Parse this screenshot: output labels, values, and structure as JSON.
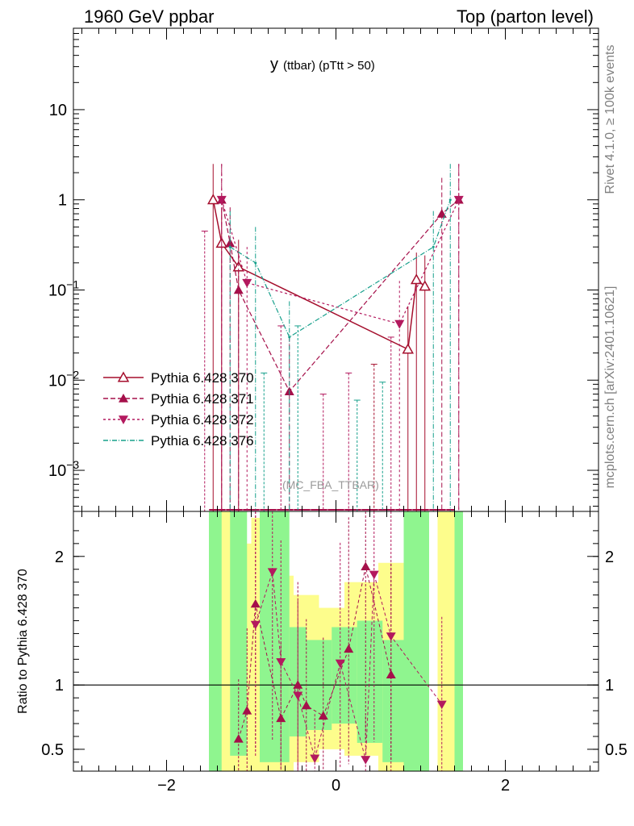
{
  "header": {
    "left": "1960 GeV ppbar",
    "right": "Top (parton level)"
  },
  "side_labels": {
    "rivet": "Rivet 4.1.0, ≥ 100k events",
    "mcplots": "mcplots.cern.ch [arXiv:2401.10621]"
  },
  "chart_data": {
    "type": "line",
    "title_main": "y",
    "title_sub": "(ttbar)  (pTtt > 50)",
    "watermark": "(MC_FBA_TTBAR)",
    "xlim": [
      -3.1,
      3.1
    ],
    "ylim_log": [
      0.00035,
      80
    ],
    "ratio_ylim": [
      0.33,
      2.35
    ],
    "ratio_ylabel": "Ratio to Pythia 6.428 370",
    "colors": {
      "s370": "#a50f2d",
      "s371": "#a5104a",
      "s372": "#b3195e",
      "s376": "#17a08c",
      "band_yellow": "#fdfd8c",
      "band_green": "#8ff58f"
    },
    "y_ticks": [
      {
        "v": 10,
        "base": "10",
        "exp": ""
      },
      {
        "v": 1,
        "base": "1",
        "exp": ""
      },
      {
        "v": 0.1,
        "base": "10",
        "exp": "−1"
      },
      {
        "v": 0.01,
        "base": "10",
        "exp": "−2"
      },
      {
        "v": 0.001,
        "base": "10",
        "exp": "−3"
      }
    ],
    "x_ticks": [
      {
        "v": -2,
        "label": "−2"
      },
      {
        "v": 0,
        "label": "0"
      },
      {
        "v": 2,
        "label": "2"
      }
    ],
    "ratio_ticks": [
      {
        "v": 2,
        "label": "2"
      },
      {
        "v": 1,
        "label": "1"
      },
      {
        "v": 0.5,
        "label": "0.5"
      }
    ],
    "series": [
      {
        "name": "Pythia 6.428 370",
        "key": "s370",
        "marker": "triangle-up-open",
        "dash": "",
        "x": [
          -1.45,
          -1.35,
          -1.15,
          0.85,
          0.95,
          1.05
        ],
        "y": [
          1.0,
          0.33,
          0.18,
          0.022,
          0.13,
          0.11
        ],
        "err": [
          2.5,
          2.5,
          2.0,
          3.0,
          2.0,
          2.2
        ]
      },
      {
        "name": "Pythia 6.428 371",
        "key": "s371",
        "marker": "triangle-up",
        "dash": "6,3",
        "x": [
          -1.35,
          -1.25,
          -1.15,
          -0.55,
          1.25,
          1.45
        ],
        "y": [
          1.0,
          0.33,
          0.1,
          0.0075,
          0.7,
          1.0
        ],
        "err": [
          2.5,
          2.5,
          2.5,
          4.0,
          2.5,
          2.5
        ]
      },
      {
        "name": "Pythia 6.428 372",
        "key": "s372",
        "marker": "triangle-down",
        "dash": "3,3",
        "x": [
          -1.35,
          -1.05,
          0.75,
          1.45
        ],
        "y": [
          1.0,
          0.12,
          0.042,
          1.0
        ],
        "err": [
          2.5,
          2.5,
          3.0,
          2.5
        ]
      },
      {
        "name": "Pythia 6.428 376",
        "key": "s376",
        "marker": "dot",
        "dash": "6,2,1,2",
        "x": [
          -1.25,
          -0.95,
          -0.55,
          1.15,
          1.35
        ],
        "y": [
          0.3,
          0.2,
          0.03,
          0.3,
          1.0
        ],
        "err": [
          2.5,
          2.5,
          2.5,
          2.5,
          2.5
        ]
      }
    ],
    "ratio_markers": [
      {
        "key": "s371",
        "x": -1.15,
        "y": 0.58,
        "shape": "up"
      },
      {
        "key": "s371",
        "x": -1.05,
        "y": 0.8,
        "shape": "up"
      },
      {
        "key": "s371",
        "x": -0.95,
        "y": 1.63,
        "shape": "up"
      },
      {
        "key": "s372",
        "x": -0.95,
        "y": 1.47,
        "shape": "down"
      },
      {
        "key": "s372",
        "x": -0.75,
        "y": 1.88,
        "shape": "down"
      },
      {
        "key": "s371",
        "x": -0.65,
        "y": 0.74,
        "shape": "up"
      },
      {
        "key": "s372",
        "x": -0.65,
        "y": 1.18,
        "shape": "down"
      },
      {
        "key": "s371",
        "x": -0.45,
        "y": 1.0,
        "shape": "up"
      },
      {
        "key": "s372",
        "x": -0.45,
        "y": 0.92,
        "shape": "down"
      },
      {
        "key": "s371",
        "x": -0.35,
        "y": 0.84,
        "shape": "up"
      },
      {
        "key": "s372",
        "x": -0.25,
        "y": 0.43,
        "shape": "down"
      },
      {
        "key": "s371",
        "x": -0.15,
        "y": 0.76,
        "shape": "up"
      },
      {
        "key": "s372",
        "x": 0.05,
        "y": 1.17,
        "shape": "down"
      },
      {
        "key": "s371",
        "x": 0.15,
        "y": 1.28,
        "shape": "up"
      },
      {
        "key": "s372",
        "x": 0.35,
        "y": 0.42,
        "shape": "down"
      },
      {
        "key": "s371",
        "x": 0.35,
        "y": 1.92,
        "shape": "up"
      },
      {
        "key": "s372",
        "x": 0.45,
        "y": 1.86,
        "shape": "down"
      },
      {
        "key": "s372",
        "x": 0.65,
        "y": 1.38,
        "shape": "down"
      },
      {
        "key": "s371",
        "x": 0.65,
        "y": 1.08,
        "shape": "up"
      },
      {
        "key": "s372",
        "x": 1.25,
        "y": 0.85,
        "shape": "down"
      }
    ],
    "ratio_band_yellow": [
      {
        "x0": -1.5,
        "x1": -1.2,
        "lo": 0.33,
        "hi": 2.35
      },
      {
        "x0": -1.2,
        "x1": -1.0,
        "lo": 0.33,
        "hi": 2.1
      },
      {
        "x0": -1.0,
        "x1": -0.6,
        "lo": 0.33,
        "hi": 2.3
      },
      {
        "x0": -0.6,
        "x1": -0.5,
        "lo": 0.33,
        "hi": 1.85
      },
      {
        "x0": -0.5,
        "x1": -0.2,
        "lo": 0.4,
        "hi": 1.7
      },
      {
        "x0": -0.2,
        "x1": 0.1,
        "lo": 0.5,
        "hi": 1.6
      },
      {
        "x0": 0.1,
        "x1": 0.5,
        "lo": 0.45,
        "hi": 1.8
      },
      {
        "x0": 0.5,
        "x1": 0.8,
        "lo": 0.33,
        "hi": 1.95
      },
      {
        "x0": 0.8,
        "x1": 1.1,
        "lo": 0.33,
        "hi": 2.35
      },
      {
        "x0": 1.2,
        "x1": 1.5,
        "lo": 0.33,
        "hi": 2.35
      }
    ],
    "ratio_band_green": [
      {
        "x0": -1.5,
        "x1": -1.35,
        "lo": 0.33,
        "hi": 2.35
      },
      {
        "x0": -1.25,
        "x1": -1.05,
        "lo": 0.45,
        "hi": 2.35
      },
      {
        "x0": -0.9,
        "x1": -0.55,
        "lo": 0.4,
        "hi": 2.35
      },
      {
        "x0": -0.55,
        "x1": -0.35,
        "lo": 0.6,
        "hi": 1.45
      },
      {
        "x0": -0.35,
        "x1": -0.05,
        "lo": 0.65,
        "hi": 1.35
      },
      {
        "x0": -0.05,
        "x1": 0.25,
        "lo": 0.7,
        "hi": 1.45
      },
      {
        "x0": 0.25,
        "x1": 0.55,
        "lo": 0.55,
        "hi": 1.5
      },
      {
        "x0": 0.55,
        "x1": 0.8,
        "lo": 0.4,
        "hi": 1.35
      },
      {
        "x0": 0.8,
        "x1": 1.1,
        "lo": 0.33,
        "hi": 2.35
      },
      {
        "x0": 1.4,
        "x1": 1.5,
        "lo": 0.33,
        "hi": 2.35
      }
    ]
  }
}
